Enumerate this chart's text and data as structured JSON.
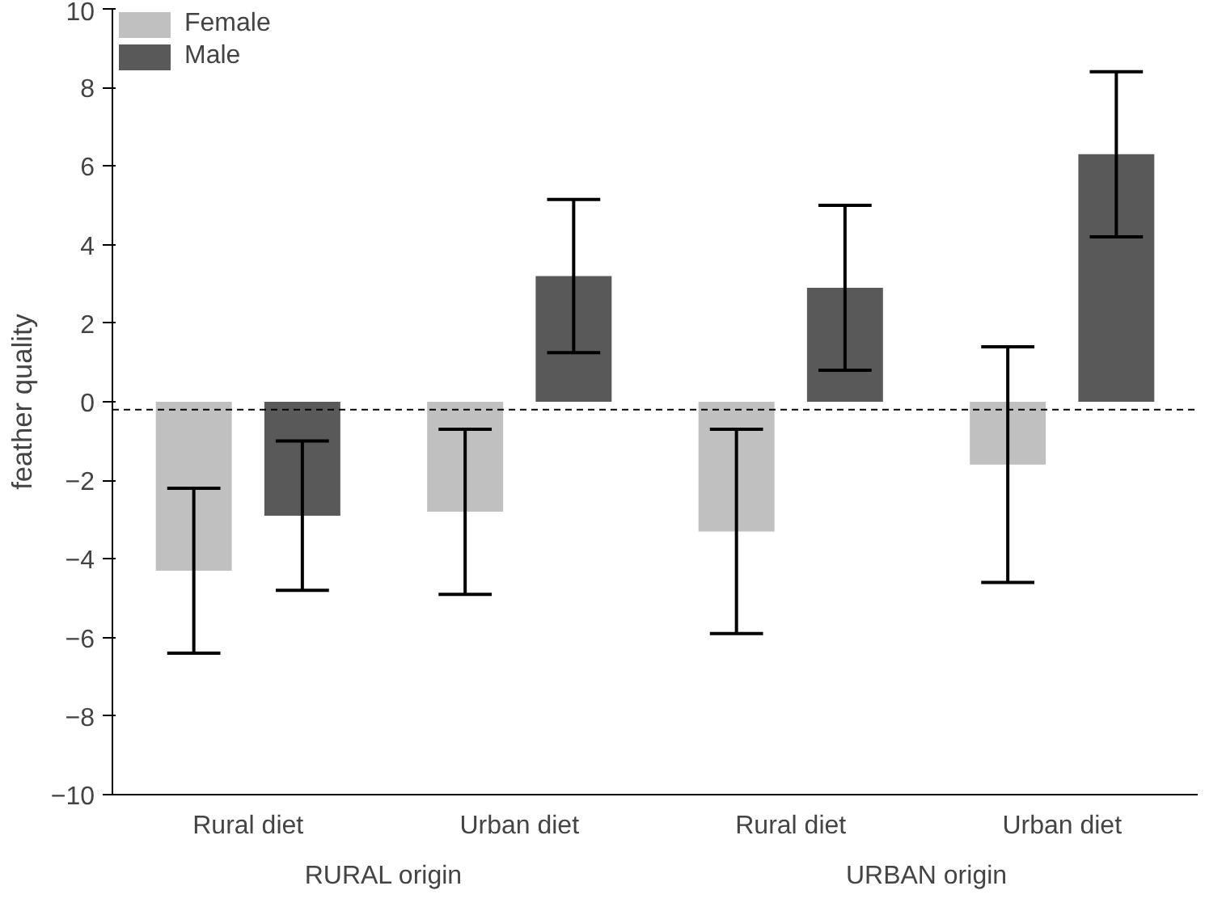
{
  "chart_data": {
    "type": "bar",
    "ylabel": "feather quality",
    "categories": [
      "Rural diet",
      "Urban diet",
      "Rural diet",
      "Urban diet"
    ],
    "series": [
      {
        "name": "Female",
        "color": "#c0c0c0",
        "values": [
          -4.3,
          -2.8,
          -3.3,
          -1.6
        ],
        "errors": [
          2.1,
          2.1,
          2.6,
          3.0
        ]
      },
      {
        "name": "Male",
        "color": "#595959",
        "values": [
          -2.9,
          3.2,
          2.9,
          6.3
        ],
        "errors": [
          1.9,
          1.95,
          2.1,
          2.1
        ]
      }
    ],
    "ylim": [
      -10,
      10
    ],
    "yticks": [
      -10,
      -8,
      -6,
      -4,
      -2,
      0,
      2,
      4,
      6,
      8,
      10
    ],
    "ref_lines": [
      {
        "axis": "y",
        "value": -0.2,
        "line_style": "dashed",
        "color": "#000000"
      }
    ],
    "annotations": [
      "RURAL origin",
      "URBAN origin"
    ],
    "grid": false,
    "legend": "top left"
  }
}
